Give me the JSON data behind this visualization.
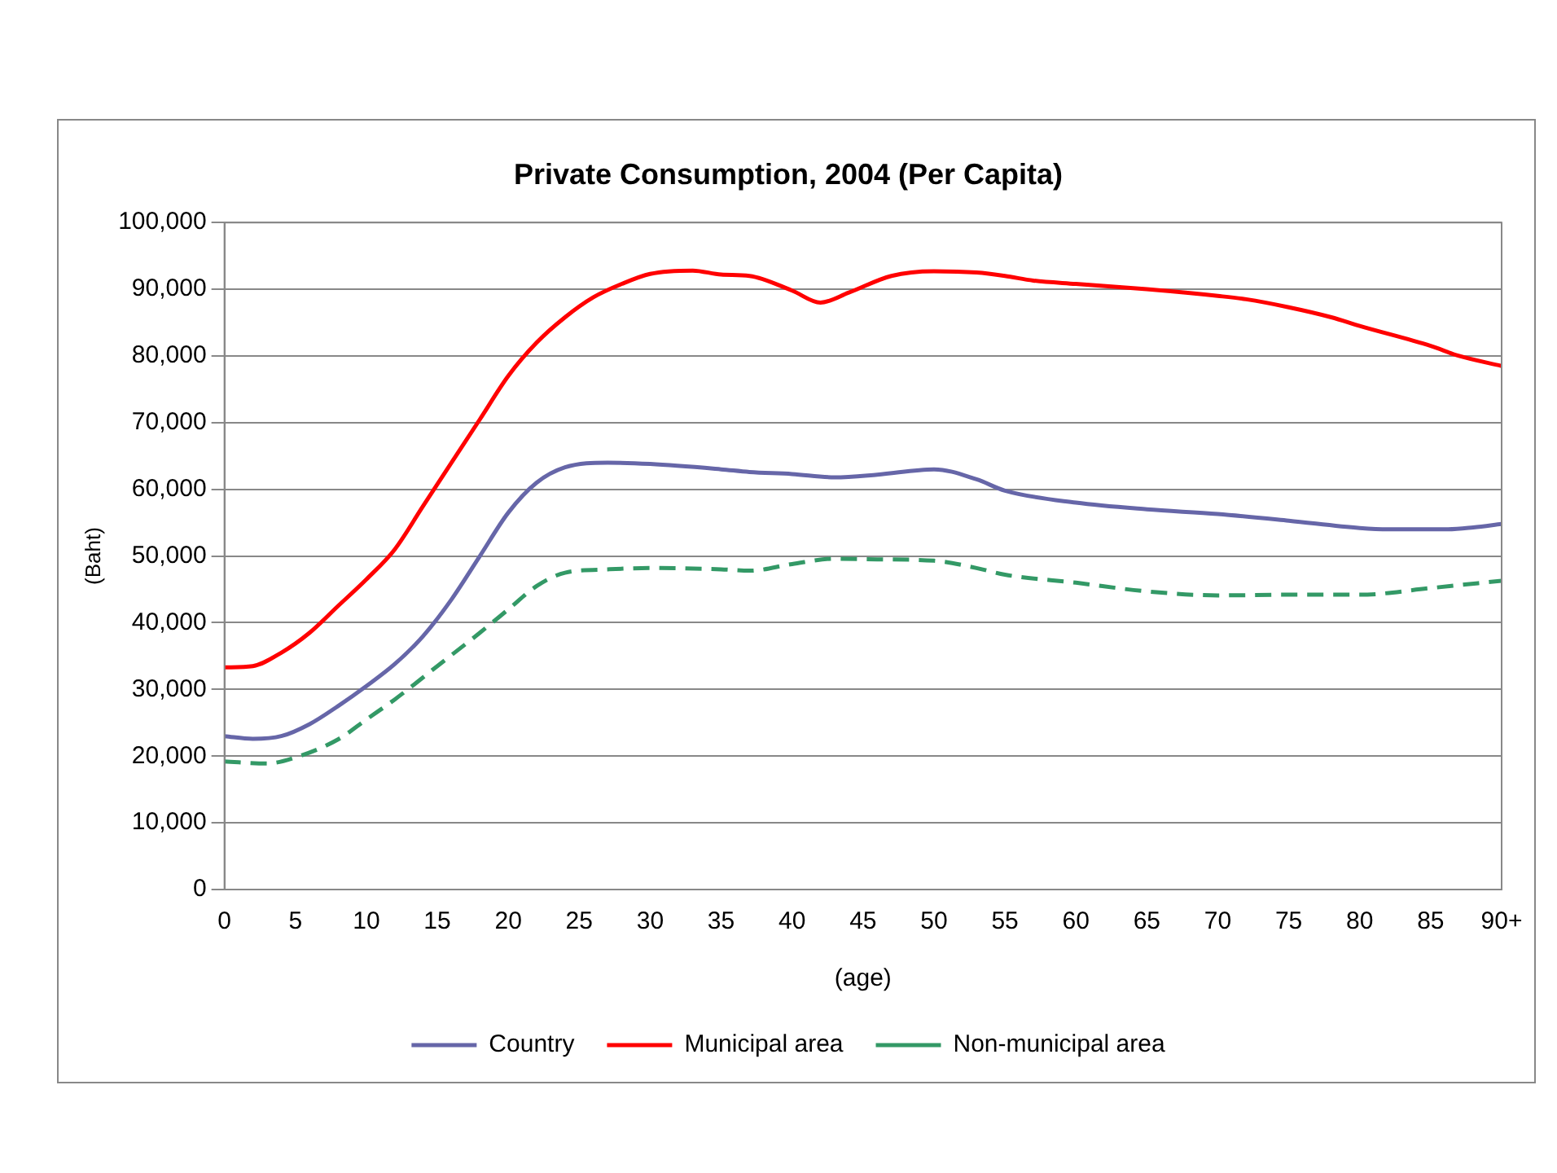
{
  "chart_data": {
    "type": "line",
    "title": "Private Consumption, 2004 (Per Capita)",
    "xlabel": "(age)",
    "ylabel": "(Baht)",
    "xlim": [
      0,
      90
    ],
    "xticks": [
      0,
      5,
      10,
      15,
      20,
      25,
      30,
      35,
      40,
      45,
      50,
      55,
      60,
      65,
      70,
      75,
      80,
      85,
      {
        "value": 90,
        "label": "90+"
      }
    ],
    "ylim": [
      0,
      100000
    ],
    "yticks": [
      0,
      {
        "value": 10000,
        "label": "10,000"
      },
      {
        "value": 20000,
        "label": "20,000"
      },
      {
        "value": 30000,
        "label": "30,000"
      },
      {
        "value": 40000,
        "label": "40,000"
      },
      {
        "value": 50000,
        "label": "50,000"
      },
      {
        "value": 60000,
        "label": "60,000"
      },
      {
        "value": 70000,
        "label": "70,000"
      },
      {
        "value": 80000,
        "label": "80,000"
      },
      {
        "value": 90000,
        "label": "90,000"
      },
      {
        "value": 100000,
        "label": "100,000"
      }
    ],
    "grid": "y",
    "legend": "bottom",
    "marker": "none",
    "series": [
      {
        "name": "Country",
        "color": "#6666a8",
        "line_style": "solid",
        "x": [
          0,
          2,
          4,
          6,
          8,
          10,
          12,
          14,
          16,
          18,
          20,
          22,
          24,
          27,
          30,
          35,
          37,
          40,
          43,
          46,
          50,
          53,
          55,
          60,
          65,
          70,
          75,
          80,
          82,
          86,
          88,
          90
        ],
        "values": [
          23000,
          22600,
          23000,
          24800,
          27500,
          30500,
          33800,
          38000,
          43500,
          50000,
          56500,
          61000,
          63300,
          64000,
          63800,
          63000,
          62600,
          62300,
          61800,
          62200,
          63000,
          61500,
          59800,
          58000,
          57000,
          56300,
          55300,
          54200,
          54000,
          54000,
          54300,
          54800
        ]
      },
      {
        "name": "Municipal area",
        "color": "#ff0000",
        "line_style": "solid",
        "x": [
          0,
          2,
          4,
          6,
          8,
          10,
          12,
          14,
          16,
          18,
          20,
          22,
          24,
          26,
          28,
          30,
          33,
          35,
          37,
          40,
          42,
          44,
          47,
          50,
          53,
          55,
          57,
          60,
          65,
          70,
          72,
          75,
          78,
          80,
          85,
          87,
          90
        ],
        "values": [
          33300,
          33500,
          35500,
          38500,
          42500,
          46500,
          51000,
          57500,
          64000,
          70500,
          77000,
          82000,
          85800,
          88800,
          90800,
          92300,
          92800,
          92200,
          92000,
          89800,
          88000,
          89500,
          92000,
          92700,
          92500,
          92000,
          91300,
          90800,
          90000,
          89000,
          88500,
          87300,
          85800,
          84500,
          81500,
          80000,
          78500
        ]
      },
      {
        "name": "Non-municipal area",
        "color": "#339966",
        "line_style": "dashed",
        "x": [
          0,
          3,
          5,
          8,
          10,
          12,
          15,
          18,
          20,
          22,
          24,
          27,
          30,
          35,
          37,
          40,
          43,
          46,
          50,
          53,
          55,
          60,
          65,
          70,
          75,
          80,
          85,
          90
        ],
        "values": [
          19200,
          18900,
          19800,
          22500,
          25500,
          28500,
          33500,
          38500,
          42000,
          45500,
          47500,
          48000,
          48200,
          48000,
          47800,
          48800,
          49600,
          49500,
          49300,
          48200,
          47200,
          46000,
          44700,
          44100,
          44200,
          44200,
          45200,
          46300
        ]
      }
    ]
  }
}
